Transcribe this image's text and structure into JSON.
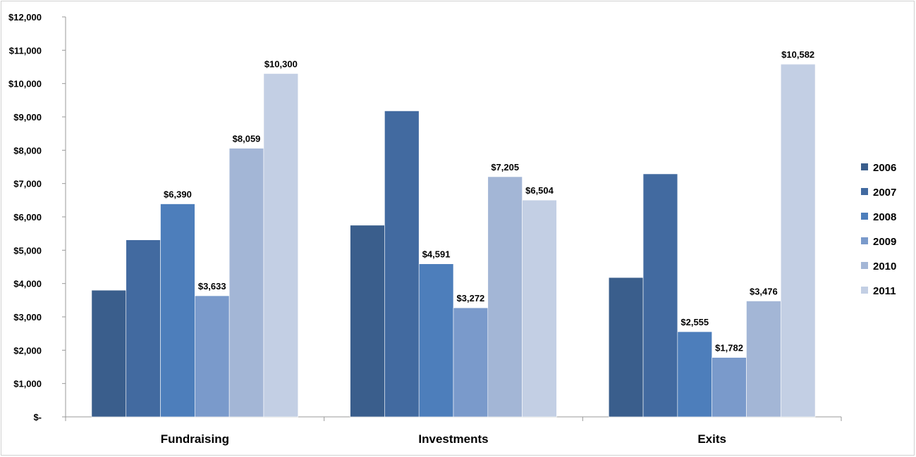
{
  "chart_data": {
    "type": "bar",
    "categories": [
      "Fundraising",
      "Investments",
      "Exits"
    ],
    "series": [
      {
        "name": "2006",
        "values": [
          3800,
          5750,
          4180
        ],
        "color": "#3a5e8c"
      },
      {
        "name": "2007",
        "values": [
          5310,
          9180,
          7290
        ],
        "color": "#426aa0"
      },
      {
        "name": "2008",
        "values": [
          6390,
          4591,
          2555
        ],
        "color": "#4d7ebb"
      },
      {
        "name": "2009",
        "values": [
          3633,
          3272,
          1782
        ],
        "color": "#7a9acb"
      },
      {
        "name": "2010",
        "values": [
          8059,
          7205,
          3476
        ],
        "color": "#a3b6d6"
      },
      {
        "name": "2011",
        "values": [
          10300,
          6504,
          10582
        ],
        "color": "#c3cfe4"
      }
    ],
    "data_labels": [
      [
        "",
        "",
        "$6,390",
        "$3,633",
        "$8,059",
        "$10,300"
      ],
      [
        "",
        "",
        "$4,591",
        "$3,272",
        "$7,205",
        "$6,504"
      ],
      [
        "",
        "",
        "$2,555",
        "$1,782",
        "$3,476",
        "$10,582"
      ]
    ],
    "y_tick_labels": [
      "$-",
      "$1,000",
      "$2,000",
      "$3,000",
      "$4,000",
      "$5,000",
      "$6,000",
      "$7,000",
      "$8,000",
      "$9,000",
      "$10,000",
      "$11,000",
      "$12,000"
    ],
    "ylim": [
      0,
      12000
    ],
    "grid": false,
    "legend_position": "right",
    "title": "",
    "xlabel": "",
    "ylabel": ""
  }
}
